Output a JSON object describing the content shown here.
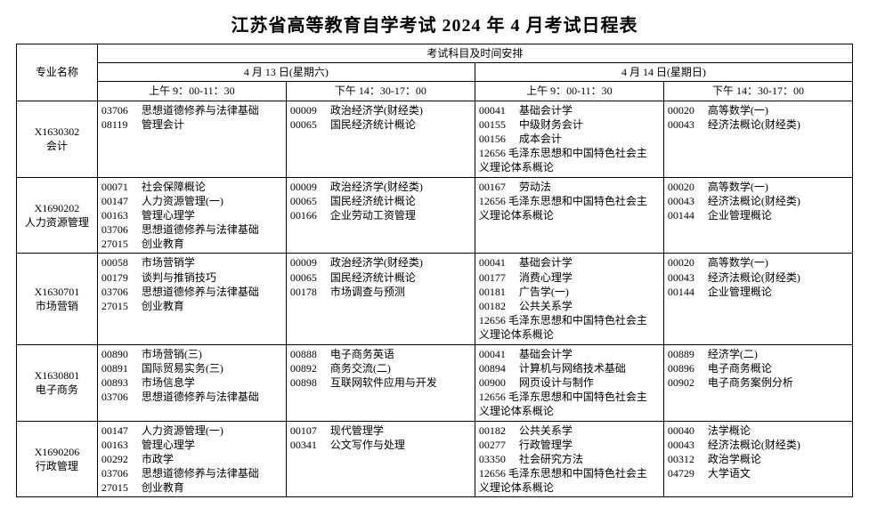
{
  "title": "江苏省高等教育自学考试 2024 年 4 月考试日程表",
  "header": {
    "major_col": "专业名称",
    "top": "考试科目及时间安排",
    "day1": "4 月 13 日(星期六)",
    "day2": "4 月 14 日(星期日)",
    "slot1": "上午 9：00-11：30",
    "slot2": "下午 14：30-17：00",
    "slot3": "上午 9：00-11：30",
    "slot4": "下午 14：30-17：00"
  },
  "rows": [
    {
      "major_code": "X1630302",
      "major_name": "会计",
      "slots": [
        [
          {
            "code": "03706",
            "name": "思想道德修养与法律基础"
          },
          {
            "code": "08119",
            "name": "管理会计"
          }
        ],
        [
          {
            "code": "00009",
            "name": "政治经济学(财经类)"
          },
          {
            "code": "00065",
            "name": "国民经济统计概论"
          }
        ],
        [
          {
            "code": "00041",
            "name": "基础会计学"
          },
          {
            "code": "00155",
            "name": "中级财务会计"
          },
          {
            "code": "00156",
            "name": "成本会计"
          },
          {
            "code": "12656",
            "name": "毛泽东思想和中国特色社会主义理论体系概论"
          }
        ],
        [
          {
            "code": "00020",
            "name": "高等数学(一)"
          },
          {
            "code": "00043",
            "name": "经济法概论(财经类)"
          }
        ]
      ]
    },
    {
      "major_code": "X1690202",
      "major_name": "人力资源管理",
      "slots": [
        [
          {
            "code": "00071",
            "name": "社会保障概论"
          },
          {
            "code": "00147",
            "name": "人力资源管理(一)"
          },
          {
            "code": "00163",
            "name": "管理心理学"
          },
          {
            "code": "03706",
            "name": "思想道德修养与法律基础"
          },
          {
            "code": "27015",
            "name": "创业教育"
          }
        ],
        [
          {
            "code": "00009",
            "name": "政治经济学(财经类)"
          },
          {
            "code": "00065",
            "name": "国民经济统计概论"
          },
          {
            "code": "00166",
            "name": "企业劳动工资管理"
          }
        ],
        [
          {
            "code": "00167",
            "name": "劳动法"
          },
          {
            "code": "12656",
            "name": "毛泽东思想和中国特色社会主义理论体系概论"
          }
        ],
        [
          {
            "code": "00020",
            "name": "高等数学(一)"
          },
          {
            "code": "00043",
            "name": "经济法概论(财经类)"
          },
          {
            "code": "00144",
            "name": "企业管理概论"
          }
        ]
      ]
    },
    {
      "major_code": "X1630701",
      "major_name": "市场营销",
      "slots": [
        [
          {
            "code": "00058",
            "name": "市场营销学"
          },
          {
            "code": "00179",
            "name": "谈判与推销技巧"
          },
          {
            "code": "03706",
            "name": "思想道德修养与法律基础"
          },
          {
            "code": "27015",
            "name": "创业教育"
          }
        ],
        [
          {
            "code": "00009",
            "name": "政治经济学(财经类)"
          },
          {
            "code": "00065",
            "name": "国民经济统计概论"
          },
          {
            "code": "00178",
            "name": "市场调查与预测"
          }
        ],
        [
          {
            "code": "00041",
            "name": "基础会计学"
          },
          {
            "code": "00177",
            "name": "消费心理学"
          },
          {
            "code": "00181",
            "name": "广告学(一)"
          },
          {
            "code": "00182",
            "name": "公共关系学"
          },
          {
            "code": "12656",
            "name": "毛泽东思想和中国特色社会主义理论体系概论"
          }
        ],
        [
          {
            "code": "00020",
            "name": "高等数学(一)"
          },
          {
            "code": "00043",
            "name": "经济法概论(财经类)"
          },
          {
            "code": "00144",
            "name": "企业管理概论"
          }
        ]
      ]
    },
    {
      "major_code": "X1630801",
      "major_name": "电子商务",
      "slots": [
        [
          {
            "code": "00890",
            "name": "市场营销(三)"
          },
          {
            "code": "00891",
            "name": "国际贸易实务(三)"
          },
          {
            "code": "00893",
            "name": "市场信息学"
          },
          {
            "code": "03706",
            "name": "思想道德修养与法律基础"
          }
        ],
        [
          {
            "code": "00888",
            "name": "电子商务英语"
          },
          {
            "code": "00892",
            "name": "商务交流(二)"
          },
          {
            "code": "00898",
            "name": "互联网软件应用与开发"
          }
        ],
        [
          {
            "code": "00041",
            "name": "基础会计学"
          },
          {
            "code": "00894",
            "name": "计算机与网络技术基础"
          },
          {
            "code": "00900",
            "name": "网页设计与制作"
          },
          {
            "code": "12656",
            "name": "毛泽东思想和中国特色社会主义理论体系概论"
          }
        ],
        [
          {
            "code": "00889",
            "name": "经济学(二)"
          },
          {
            "code": "00896",
            "name": "电子商务概论"
          },
          {
            "code": "00902",
            "name": "电子商务案例分析"
          }
        ]
      ]
    },
    {
      "major_code": "X1690206",
      "major_name": "行政管理",
      "slots": [
        [
          {
            "code": "00147",
            "name": "人力资源管理(一)"
          },
          {
            "code": "00163",
            "name": "管理心理学"
          },
          {
            "code": "00292",
            "name": "市政学"
          },
          {
            "code": "03706",
            "name": "思想道德修养与法律基础"
          },
          {
            "code": "27015",
            "name": "创业教育"
          }
        ],
        [
          {
            "code": "00107",
            "name": "现代管理学"
          },
          {
            "code": "00341",
            "name": "公文写作与处理"
          }
        ],
        [
          {
            "code": "00182",
            "name": "公共关系学"
          },
          {
            "code": "00277",
            "name": "行政管理学"
          },
          {
            "code": "03350",
            "name": "社会研究方法"
          },
          {
            "code": "12656",
            "name": "毛泽东思想和中国特色社会主义理论体系概论"
          }
        ],
        [
          {
            "code": "00040",
            "name": "法学概论"
          },
          {
            "code": "00043",
            "name": "经济法概论(财经类)"
          },
          {
            "code": "00312",
            "name": "政治学概论"
          },
          {
            "code": "04729",
            "name": "大学语文"
          }
        ]
      ]
    }
  ]
}
